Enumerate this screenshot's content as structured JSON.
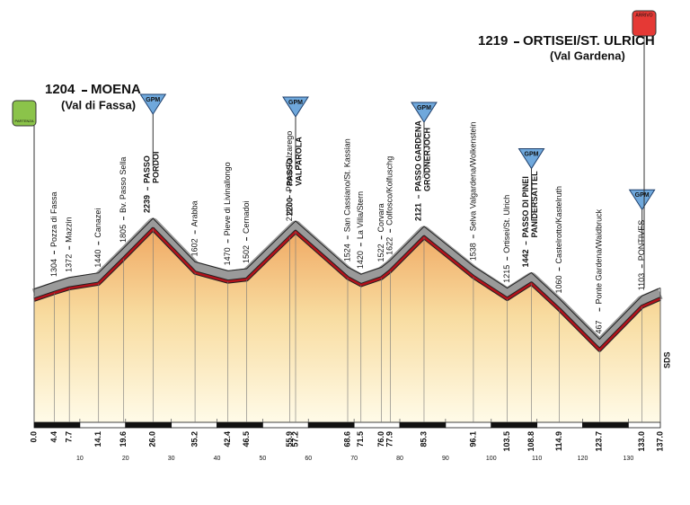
{
  "chart_data": {
    "type": "profile",
    "x": [
      0,
      4.4,
      7.7,
      14.1,
      19.6,
      26,
      35.2,
      42.4,
      46.5,
      55.9,
      57.2,
      68.6,
      71.5,
      76,
      77.9,
      85.3,
      96.1,
      103.5,
      108.8,
      114.9,
      123.7,
      133,
      137
    ],
    "x_labels": [
      "0.0",
      "4.4",
      "7.7",
      "14.1",
      "19.6",
      "26.0",
      "35.2",
      "42.4",
      "46.5",
      "55.9",
      "57.2",
      "68.6",
      "71.5",
      "76.0",
      "77.9",
      "85.3",
      "96.1",
      "103.5",
      "108.8",
      "114.9",
      "123.7",
      "133.0",
      "137.0"
    ],
    "values": [
      1204,
      1304,
      1372,
      1440,
      1805,
      2239,
      1602,
      1470,
      1502,
      2117,
      2200,
      1524,
      1420,
      1522,
      1622,
      2121,
      1538,
      1215,
      1442,
      1060,
      467,
      1103,
      1219
    ],
    "names": [
      "MOENA",
      "Pozza di Fassa",
      "Mazzin",
      "Canazei",
      "Bv. Passo Sella",
      [
        "PASSO",
        "PORDOI"
      ],
      "Arabba",
      "Pieve di Livinallongo",
      "Cernadoi",
      "Passo Falzarego",
      [
        "PASSO",
        "VALPAROLA"
      ],
      "San Cassiano/St. Kassian",
      "La Villa/Stern",
      "Corvara",
      "Colfosco/Kolfuschg",
      [
        "PASSO GARDENA",
        "GRÖDNERJOCH"
      ],
      "Selva Valgardena/Wolkenstein",
      "Ortisei/St. Ulrich",
      [
        "PASSO DI PINEI",
        "PANIDERSATTEL"
      ],
      "Castelrotto/Kastelruth",
      "Ponte Gardena/Waidbruck",
      "PONTIVES",
      "ORTISEI/ST. ULRICH"
    ],
    "start_subtitle": "(Val di Fassa)",
    "finish_subtitle": "(Val Gardena)",
    "start_badge": "PARTENZA",
    "finish_badge": "ARRIVO",
    "gpm_label": "GPM",
    "gpm": [
      5,
      10,
      15,
      18,
      21
    ],
    "xlim": [
      0,
      137
    ],
    "xticks": [
      10,
      20,
      30,
      40,
      50,
      60,
      70,
      80,
      90,
      100,
      110,
      120,
      130
    ],
    "source": "SDS",
    "line_color": "#b3121b",
    "wall_color": "#9a9a9a"
  }
}
